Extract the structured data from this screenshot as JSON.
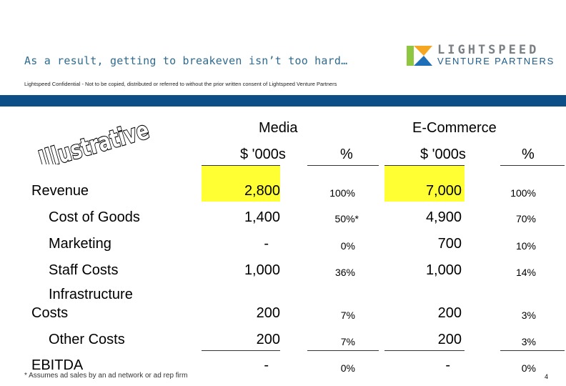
{
  "header": {
    "title": "As a result, getting to breakeven isn’t too hard…",
    "confidential": "Lightspeed Confidential - Not to be copied, distributed or referred to without the prior written consent of Lightspeed Venture Partners",
    "logo_line1": "LIGHTSPEED",
    "logo_line2": "VENTURE PARTNERS"
  },
  "stamp": "Illustrative",
  "columns": {
    "group1": "Media",
    "group2": "E-Commerce",
    "amount": "$ '000s",
    "pct": "%"
  },
  "rows": [
    {
      "label": "Revenue",
      "media_amt": "2,800",
      "media_pct": "100%",
      "ecom_amt": "7,000",
      "ecom_pct": "100%"
    },
    {
      "label": "Cost of Goods",
      "media_amt": "1,400",
      "media_pct": "50%*",
      "ecom_amt": "4,900",
      "ecom_pct": "70%"
    },
    {
      "label": "Marketing",
      "media_amt": "-",
      "media_pct": "0%",
      "ecom_amt": "700",
      "ecom_pct": "10%"
    },
    {
      "label": "Staff Costs",
      "media_amt": "1,000",
      "media_pct": "36%",
      "ecom_amt": "1,000",
      "ecom_pct": "14%"
    },
    {
      "label_line1": "Infrastructure",
      "label_line2": "Costs",
      "media_amt": "200",
      "media_pct": "7%",
      "ecom_amt": "200",
      "ecom_pct": "3%"
    },
    {
      "label": "Other Costs",
      "media_amt": "200",
      "media_pct": "7%",
      "ecom_amt": "200",
      "ecom_pct": "3%"
    },
    {
      "label": "EBITDA",
      "media_amt": "-",
      "media_pct": "0%",
      "ecom_amt": "-",
      "ecom_pct": "0%"
    }
  ],
  "footnote": "* Assumes ad sales by an ad network or ad rep firm",
  "page_number": "4",
  "colors": {
    "brand_blue": "#0b4f86",
    "highlight": "#ffff33",
    "title": "#2f6b8f"
  }
}
